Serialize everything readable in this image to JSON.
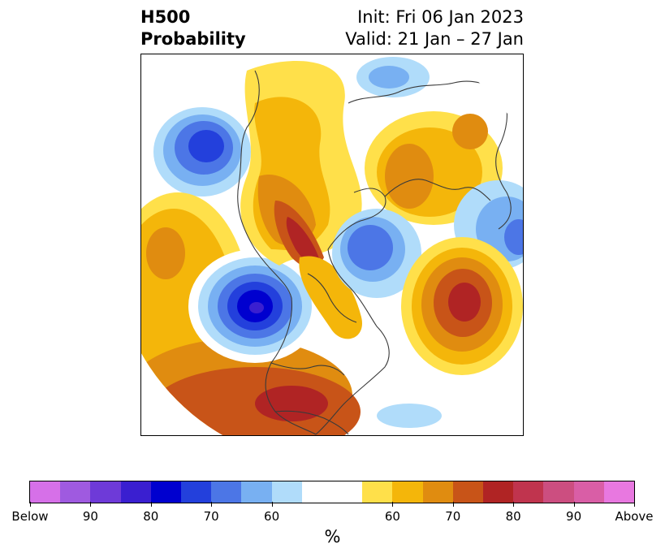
{
  "title": {
    "left_line1": "H500",
    "left_line2": "Probability",
    "right_line1": "Init: Fri 06 Jan 2023",
    "right_line2": "Valid: 21 Jan – 27 Jan"
  },
  "colorbar": {
    "unit": "%",
    "colors": [
      "#d670e8",
      "#9f5ae0",
      "#6e3ad8",
      "#3a1fd0",
      "#0000cf",
      "#2340dc",
      "#4c76e6",
      "#78b0f2",
      "#b0dcfa",
      "#ffffff",
      "#ffffff",
      "#ffe04a",
      "#f4b60a",
      "#e08c10",
      "#c85418",
      "#b02424",
      "#c0344e",
      "#cc4e80",
      "#d95ea6",
      "#e878e0"
    ],
    "tick_labels": [
      "Below",
      "90",
      "80",
      "70",
      "60",
      "60",
      "70",
      "80",
      "90",
      "Above"
    ]
  },
  "map": {
    "projection": "polar-stereographic",
    "palette": {
      "blue_light": "#b0dcfa",
      "blue_mid": "#78b0f2",
      "blue_med": "#4c76e6",
      "blue_strong": "#2340dc",
      "blue_deep": "#0000cf",
      "blue_core": "#3a1fd0",
      "yellow": "#ffe04a",
      "gold": "#f4b60a",
      "orange": "#e08c10",
      "dark_orange": "#c85418",
      "red": "#b02424",
      "coastline": "#3a3a3a"
    }
  }
}
